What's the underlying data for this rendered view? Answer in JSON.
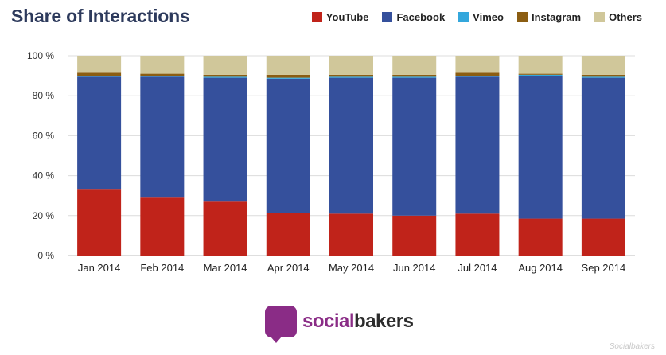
{
  "chart_data": {
    "type": "bar",
    "stacked": true,
    "title": "Share of Interactions",
    "categories": [
      "Jan 2014",
      "Feb 2014",
      "Mar 2014",
      "Apr 2014",
      "May 2014",
      "Jun 2014",
      "Jul 2014",
      "Aug 2014",
      "Sep 2014"
    ],
    "series": [
      {
        "name": "YouTube",
        "color": "#c0231a",
        "values": [
          33,
          29,
          27,
          21.5,
          21,
          20,
          21,
          18.5,
          18.5
        ]
      },
      {
        "name": "Facebook",
        "color": "#35509c",
        "values": [
          56.5,
          60.5,
          62,
          67,
          68,
          69,
          68.5,
          71.5,
          70.5
        ]
      },
      {
        "name": "Vimeo",
        "color": "#34a7dc",
        "values": [
          0.5,
          0.5,
          0.5,
          0.5,
          0.5,
          0.5,
          0.5,
          0.5,
          0.5
        ]
      },
      {
        "name": "Instagram",
        "color": "#8b5d12",
        "values": [
          1.5,
          1,
          1,
          1.5,
          1,
          1,
          1.5,
          0.5,
          1
        ]
      },
      {
        "name": "Others",
        "color": "#d0c79a",
        "values": [
          8.5,
          9,
          9.5,
          9.5,
          9.5,
          9.5,
          8.5,
          9,
          9.5
        ]
      }
    ],
    "ylim": [
      0,
      100
    ],
    "yticks": [
      "0 %",
      "20 %",
      "40 %",
      "60 %",
      "80 %",
      "100 %"
    ],
    "ytick_values": [
      0,
      20,
      40,
      60,
      80,
      100
    ],
    "grid": true,
    "legend_position": "top-right"
  },
  "branding": {
    "logo_social": "social",
    "logo_bakers": "bakers",
    "watermark": "Socialbakers"
  }
}
